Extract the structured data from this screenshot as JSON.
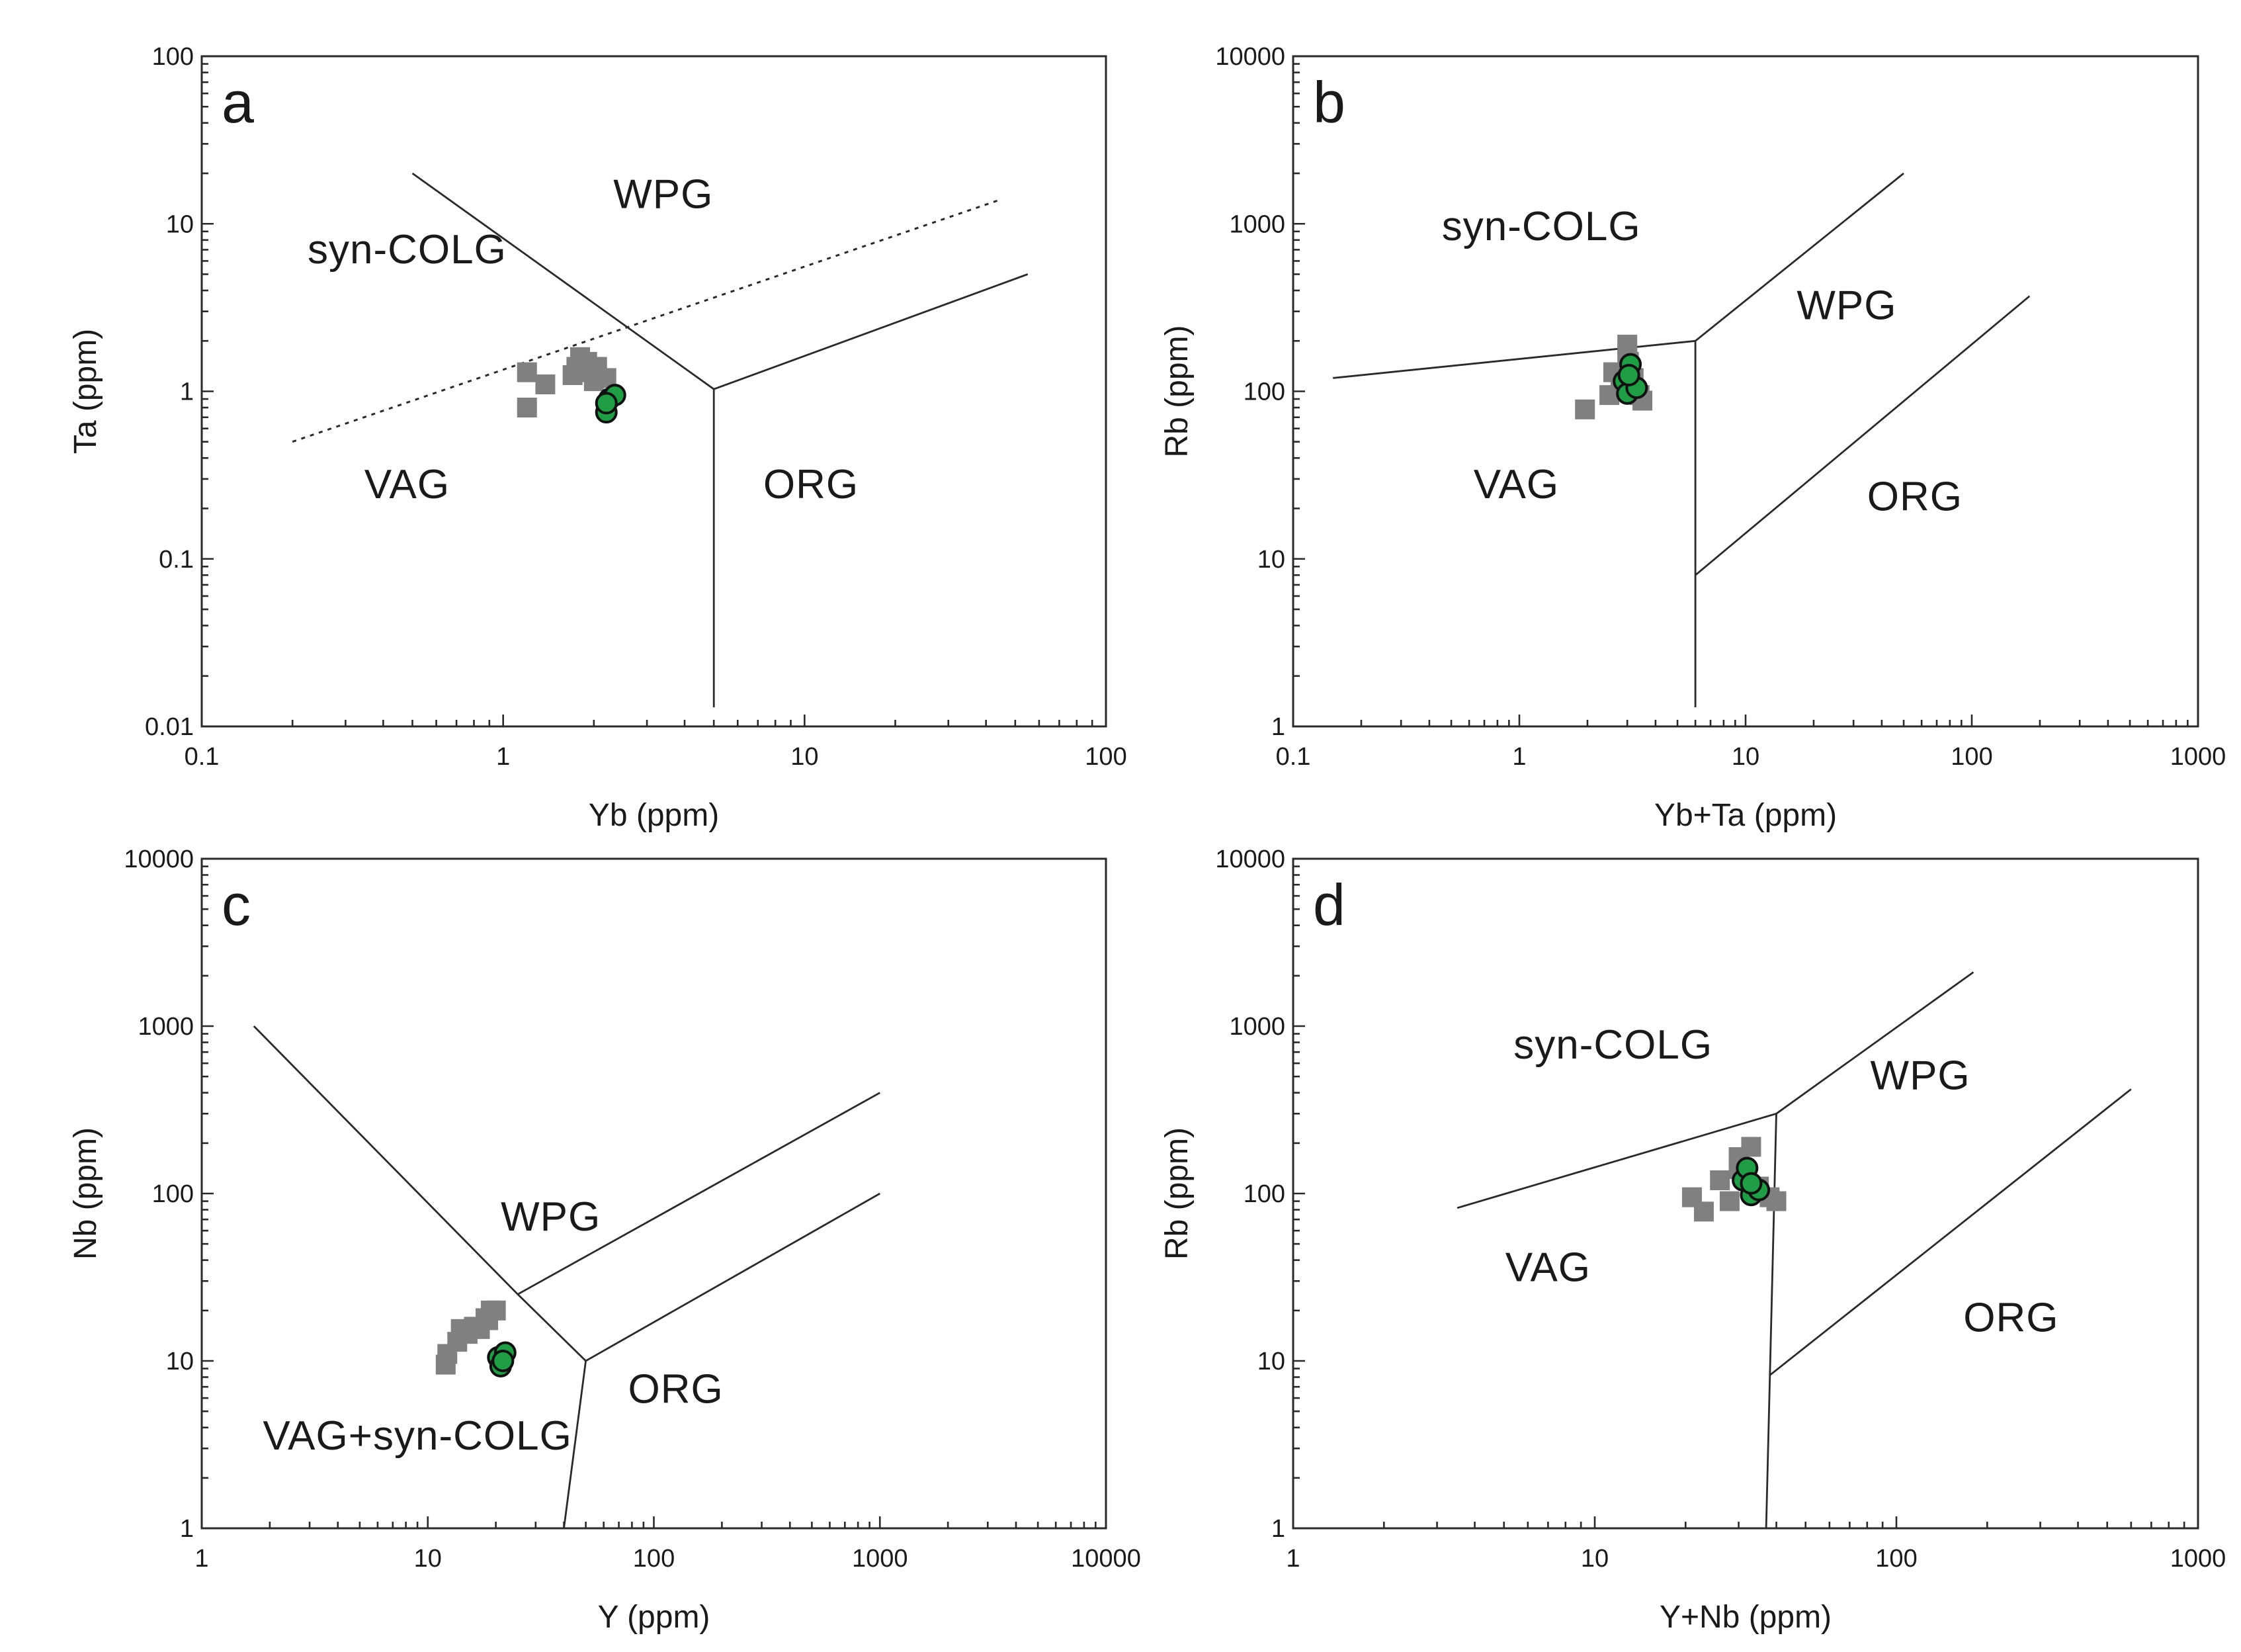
{
  "figure": {
    "colors": {
      "square_samples": "#808080",
      "circle_samples": "#1f9e45",
      "lines": "#2a2a2a"
    }
  },
  "chart_data": [
    {
      "type": "scatter",
      "panel_label": "a",
      "xscale": "log",
      "yscale": "log",
      "xlabel": "Yb (ppm)",
      "ylabel": "Ta (ppm)",
      "xlim": [
        0.1,
        100
      ],
      "ylim": [
        0.01,
        100
      ],
      "x_ticks": [
        0.1,
        1,
        10,
        100
      ],
      "x_tick_labels": [
        "0.1",
        "1",
        "10",
        "100"
      ],
      "y_ticks": [
        0.01,
        0.1,
        1,
        10,
        100
      ],
      "y_tick_labels": [
        "0.01",
        "0.1",
        "1",
        "10",
        "100"
      ],
      "fields": [
        {
          "label": "syn-COLG",
          "x": 0.48,
          "y": 5.8
        },
        {
          "label": "WPG",
          "x": 3.4,
          "y": 12.4
        },
        {
          "label": "VAG",
          "x": 0.48,
          "y": 0.23
        },
        {
          "label": "ORG",
          "x": 10.5,
          "y": 0.23
        }
      ],
      "boundaries": [
        {
          "style": "solid",
          "points": [
            [
              0.5,
              20
            ],
            [
              5,
              1.03
            ]
          ]
        },
        {
          "style": "solid",
          "points": [
            [
              5,
              1.03
            ],
            [
              5,
              0.013
            ]
          ]
        },
        {
          "style": "solid",
          "points": [
            [
              5,
              1.03
            ],
            [
              55,
              5
            ]
          ]
        },
        {
          "style": "dotted",
          "points": [
            [
              0.2,
              0.5
            ],
            [
              45,
              14
            ]
          ]
        }
      ],
      "series": [
        {
          "name": "squares",
          "marker": "square",
          "color": "#808080",
          "x": [
            1.2,
            1.2,
            1.38,
            1.7,
            1.8,
            1.9,
            1.85,
            2.0,
            2.05,
            2.2,
            1.75
          ],
          "y": [
            1.3,
            0.8,
            1.1,
            1.25,
            1.6,
            1.5,
            1.3,
            1.15,
            1.4,
            1.2,
            1.4
          ]
        },
        {
          "name": "circles",
          "marker": "circle",
          "color": "#1f9e45",
          "x": [
            2.2,
            2.25,
            2.35,
            2.2
          ],
          "y": [
            0.75,
            0.9,
            0.95,
            0.85
          ]
        }
      ]
    },
    {
      "type": "scatter",
      "panel_label": "b",
      "xscale": "log",
      "yscale": "log",
      "xlabel": "Yb+Ta (ppm)",
      "ylabel": "Rb (ppm)",
      "xlim": [
        0.1,
        1000
      ],
      "ylim": [
        1,
        10000
      ],
      "x_ticks": [
        0.1,
        1,
        10,
        100,
        1000
      ],
      "x_tick_labels": [
        "0.1",
        "1",
        "10",
        "100",
        "1000"
      ],
      "y_ticks": [
        1,
        10,
        100,
        1000,
        10000
      ],
      "y_tick_labels": [
        "1",
        "10",
        "100",
        "1000",
        "10000"
      ],
      "fields": [
        {
          "label": "syn-COLG",
          "x": 1.25,
          "y": 800
        },
        {
          "label": "WPG",
          "x": 28,
          "y": 270
        },
        {
          "label": "VAG",
          "x": 0.97,
          "y": 23
        },
        {
          "label": "ORG",
          "x": 56,
          "y": 19.5
        }
      ],
      "boundaries": [
        {
          "style": "solid",
          "points": [
            [
              0.15,
              120
            ],
            [
              6,
              200
            ]
          ]
        },
        {
          "style": "solid",
          "points": [
            [
              6,
              200
            ],
            [
              6,
              1.3
            ]
          ]
        },
        {
          "style": "solid",
          "points": [
            [
              6,
              200
            ],
            [
              50,
              2000
            ]
          ]
        },
        {
          "style": "solid",
          "points": [
            [
              6,
              8
            ],
            [
              180,
              370
            ]
          ]
        }
      ],
      "series": [
        {
          "name": "squares",
          "marker": "square",
          "color": "#808080",
          "x": [
            1.95,
            2.5,
            2.6,
            2.8,
            3.0,
            3.05,
            3.2,
            3.5,
            3.4,
            3.0
          ],
          "y": [
            78,
            95,
            130,
            110,
            190,
            150,
            120,
            88,
            95,
            170
          ]
        },
        {
          "name": "circles",
          "marker": "circle",
          "color": "#1f9e45",
          "x": [
            2.9,
            3.0,
            3.1,
            3.3,
            3.05
          ],
          "y": [
            115,
            97,
            145,
            105,
            125
          ]
        }
      ]
    },
    {
      "type": "scatter",
      "panel_label": "c",
      "xscale": "log",
      "yscale": "log",
      "xlabel": "Y (ppm)",
      "ylabel": "Nb (ppm)",
      "xlim": [
        1,
        10000
      ],
      "ylim": [
        1,
        10000
      ],
      "x_ticks": [
        1,
        10,
        100,
        1000,
        10000
      ],
      "x_tick_labels": [
        "1",
        "10",
        "100",
        "1000",
        "10000"
      ],
      "y_ticks": [
        1,
        10,
        100,
        1000,
        10000
      ],
      "y_tick_labels": [
        "1",
        "10",
        "100",
        "1000",
        "10000"
      ],
      "fields": [
        {
          "label": "WPG",
          "x": 35,
          "y": 60
        },
        {
          "label": "VAG+syn-COLG",
          "x": 9,
          "y": 2.95
        },
        {
          "label": "ORG",
          "x": 125,
          "y": 5.6
        }
      ],
      "boundaries": [
        {
          "style": "solid",
          "points": [
            [
              1.7,
              1000
            ],
            [
              25,
              25
            ]
          ]
        },
        {
          "style": "solid",
          "points": [
            [
              25,
              25
            ],
            [
              50,
              10
            ]
          ]
        },
        {
          "style": "solid",
          "points": [
            [
              25,
              25
            ],
            [
              1000,
              400
            ]
          ]
        },
        {
          "style": "solid",
          "points": [
            [
              50,
              10
            ],
            [
              1000,
              100
            ]
          ]
        },
        {
          "style": "solid",
          "points": [
            [
              50,
              10
            ],
            [
              40,
              1
            ]
          ]
        }
      ],
      "series": [
        {
          "name": "squares",
          "marker": "square",
          "color": "#808080",
          "x": [
            12,
            12.2,
            13.5,
            14,
            15,
            16,
            17,
            18,
            19,
            20,
            18.5
          ],
          "y": [
            9.5,
            11,
            13,
            15.5,
            14.5,
            16,
            15.5,
            18,
            20,
            20,
            17.5
          ]
        },
        {
          "name": "circles",
          "marker": "circle",
          "color": "#1f9e45",
          "x": [
            20.5,
            21,
            22,
            21.5
          ],
          "y": [
            10.5,
            9.3,
            11.2,
            10.0
          ]
        }
      ]
    },
    {
      "type": "scatter",
      "panel_label": "d",
      "xscale": "log",
      "yscale": "log",
      "xlabel": "Y+Nb (ppm)",
      "ylabel": "Rb (ppm)",
      "xlim": [
        1,
        1000
      ],
      "ylim": [
        1,
        10000
      ],
      "x_ticks": [
        1,
        10,
        100,
        1000
      ],
      "x_tick_labels": [
        "1",
        "10",
        "100",
        "1000"
      ],
      "y_ticks": [
        1,
        10,
        100,
        1000,
        10000
      ],
      "y_tick_labels": [
        "1",
        "10",
        "100",
        "1000",
        "10000"
      ],
      "fields": [
        {
          "label": "syn-COLG",
          "x": 11.5,
          "y": 640
        },
        {
          "label": "WPG",
          "x": 120,
          "y": 420
        },
        {
          "label": "VAG",
          "x": 7,
          "y": 30
        },
        {
          "label": "ORG",
          "x": 240,
          "y": 15
        }
      ],
      "boundaries": [
        {
          "style": "solid",
          "points": [
            [
              3.5,
              82
            ],
            [
              40,
              300
            ]
          ]
        },
        {
          "style": "solid",
          "points": [
            [
              40,
              300
            ],
            [
              37,
              1
            ]
          ]
        },
        {
          "style": "solid",
          "points": [
            [
              40,
              300
            ],
            [
              180,
              2100
            ]
          ]
        },
        {
          "style": "solid",
          "points": [
            [
              38,
              8.2
            ],
            [
              600,
              420
            ]
          ]
        }
      ],
      "series": [
        {
          "name": "squares",
          "marker": "square",
          "color": "#808080",
          "x": [
            21,
            23,
            26,
            28,
            30,
            33,
            35,
            38,
            40,
            30
          ],
          "y": [
            95,
            78,
            120,
            90,
            140,
            190,
            110,
            95,
            90,
            165
          ]
        },
        {
          "name": "circles",
          "marker": "circle",
          "color": "#1f9e45",
          "x": [
            31,
            32,
            33,
            35,
            33
          ],
          "y": [
            120,
            142,
            98,
            105,
            115
          ]
        }
      ]
    }
  ]
}
